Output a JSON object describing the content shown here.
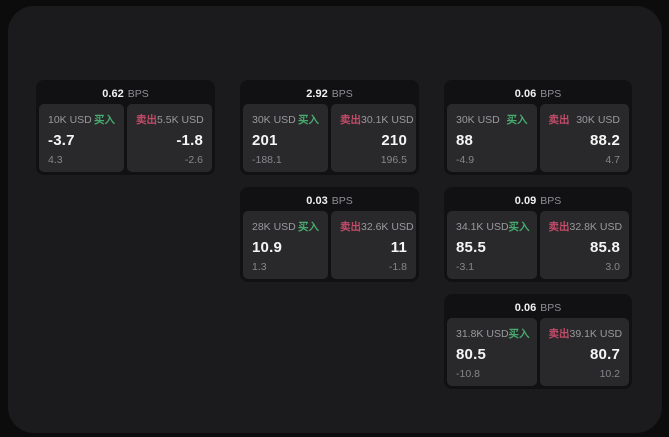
{
  "colors": {
    "page_bg": "#0c0c0d",
    "surface_bg": "#1b1b1d",
    "card_bg": "#111113",
    "tile_bg": "#29292b",
    "text_primary": "#f5f5f5",
    "text_secondary": "#9a9a9e",
    "buy_green": "#48aa6e",
    "sell_red": "#c24b68"
  },
  "labels": {
    "bps_suffix": "BPS",
    "buy": "买入",
    "sell": "卖出"
  },
  "cards": [
    {
      "bps": "0.62",
      "buy": {
        "size": "10K USD",
        "value": "-3.7",
        "sub": "4.3"
      },
      "sell": {
        "size": "5.5K USD",
        "value": "-1.8",
        "sub": "-2.6"
      }
    },
    {
      "bps": "2.92",
      "buy": {
        "size": "30K USD",
        "value": "201",
        "sub": "-188.1"
      },
      "sell": {
        "size": "30.1K USD",
        "value": "210",
        "sub": "196.5"
      }
    },
    {
      "bps": "0.06",
      "buy": {
        "size": "30K USD",
        "value": "88",
        "sub": "-4.9"
      },
      "sell": {
        "size": "30K USD",
        "value": "88.2",
        "sub": "4.7"
      }
    },
    {
      "bps": "0.03",
      "buy": {
        "size": "28K USD",
        "value": "10.9",
        "sub": "1.3"
      },
      "sell": {
        "size": "32.6K USD",
        "value": "11",
        "sub": "-1.8"
      }
    },
    {
      "bps": "0.09",
      "buy": {
        "size": "34.1K USD",
        "value": "85.5",
        "sub": "-3.1"
      },
      "sell": {
        "size": "32.8K USD",
        "value": "85.8",
        "sub": "3.0"
      }
    },
    {
      "bps": "0.06",
      "buy": {
        "size": "31.8K USD",
        "value": "80.5",
        "sub": "-10.8"
      },
      "sell": {
        "size": "39.1K USD",
        "value": "80.7",
        "sub": "10.2"
      }
    }
  ]
}
